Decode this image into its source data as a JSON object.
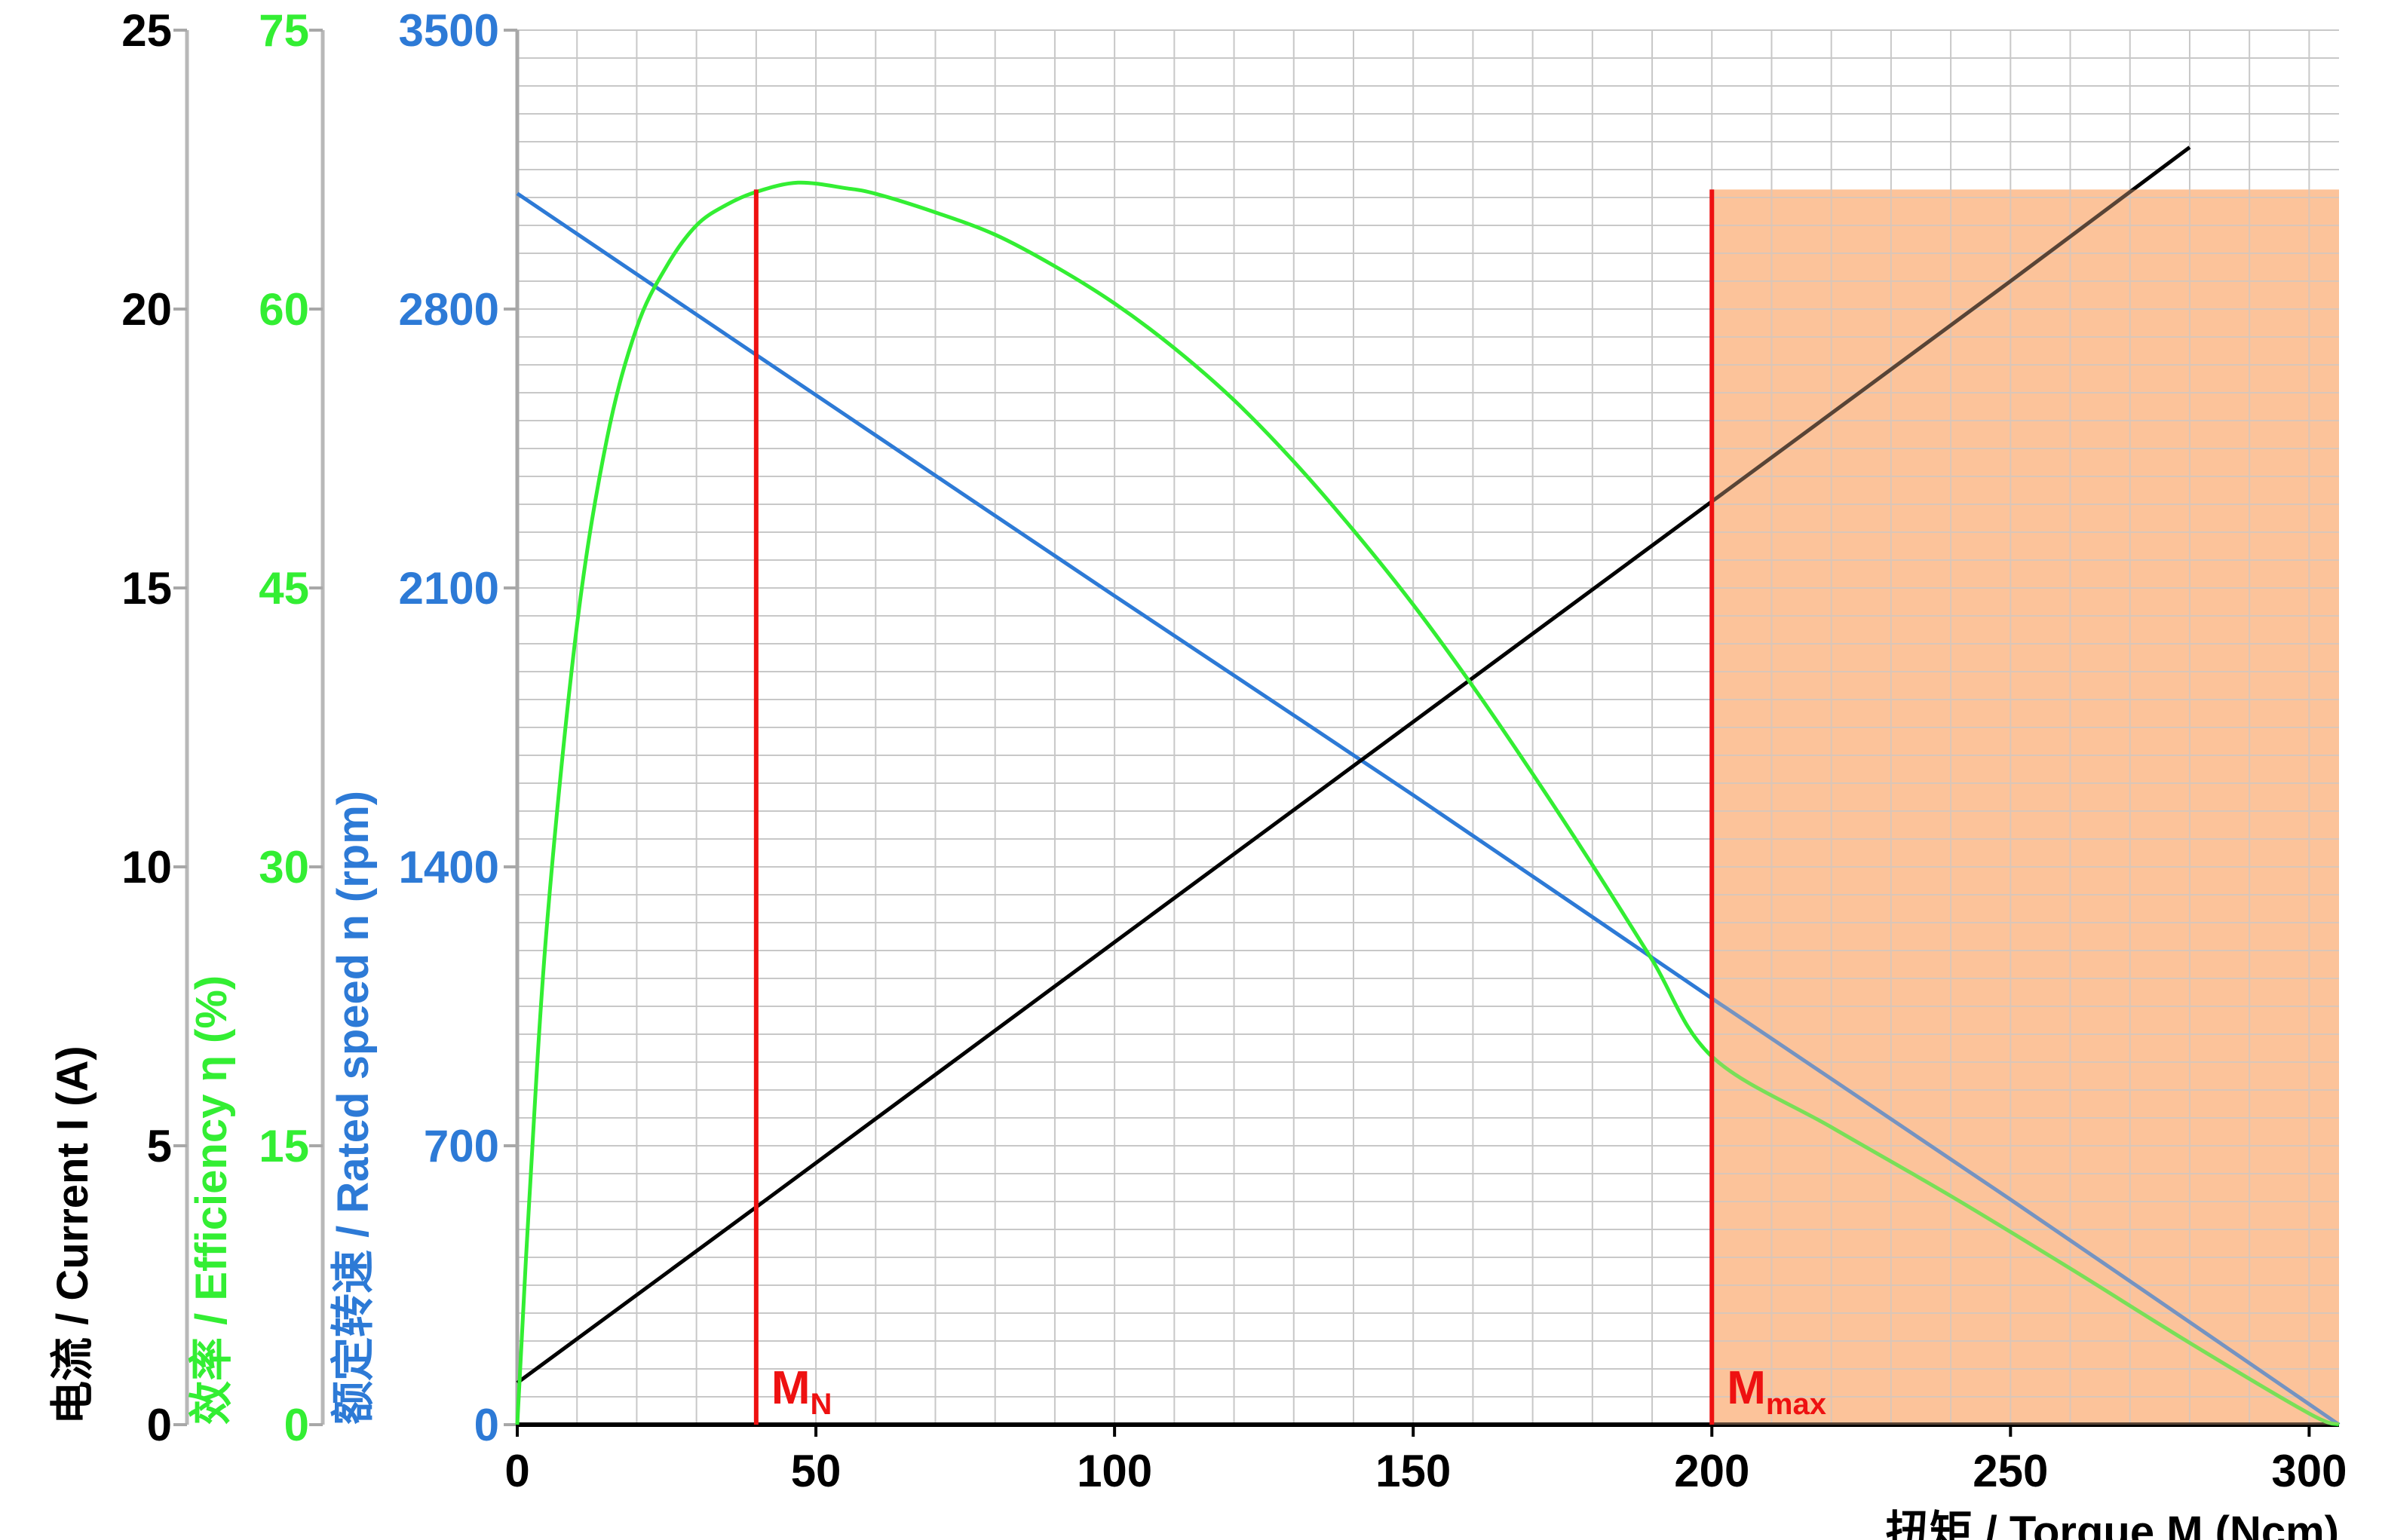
{
  "chart_data": {
    "type": "line",
    "x_axis": {
      "label": "扭矩 / Torque M (Ncm)",
      "range": [
        0,
        305
      ],
      "ticks": [
        0,
        50,
        100,
        150,
        200,
        250,
        300
      ]
    },
    "y_axes": [
      {
        "id": "current",
        "label": "电流 / Current I (A)",
        "range": [
          0,
          25
        ],
        "ticks": [
          0,
          5,
          10,
          15,
          20,
          25
        ],
        "color": "#000000"
      },
      {
        "id": "efficiency",
        "label": "效率 / Efficiency η  (%)",
        "range": [
          0,
          75
        ],
        "ticks": [
          0,
          15,
          30,
          45,
          60,
          75
        ],
        "color": "#33ee33"
      },
      {
        "id": "speed",
        "label": "额定转速 / Rated speed n (rpm)",
        "range": [
          0,
          3500
        ],
        "ticks": [
          0,
          700,
          1400,
          2100,
          2800,
          3500
        ],
        "color": "#2d7ad6"
      }
    ],
    "series": [
      {
        "axis": "speed",
        "color": "#2d7ad6",
        "x": [
          0,
          40,
          100,
          150,
          200,
          250,
          305
        ],
        "y": [
          3090,
          2685,
          2080,
          1580,
          1070,
          565,
          0
        ]
      },
      {
        "axis": "current",
        "color": "#000000",
        "x": [
          0,
          40,
          100,
          150,
          200,
          250,
          280
        ],
        "y": [
          0.75,
          3.9,
          8.65,
          12.6,
          16.55,
          20.5,
          22.9
        ]
      },
      {
        "axis": "efficiency",
        "color": "#33ee33",
        "x": [
          0,
          2,
          5,
          10,
          15,
          20,
          25,
          30,
          35,
          40,
          47,
          55,
          60,
          70,
          80,
          90,
          100,
          110,
          120,
          130,
          140,
          150,
          160,
          170,
          180,
          190,
          200,
          220,
          240,
          260,
          280,
          300,
          305
        ],
        "y": [
          0,
          12,
          27,
          43,
          53,
          59,
          62.3,
          64.5,
          65.6,
          66.3,
          66.8,
          66.5,
          66.2,
          65.2,
          64.0,
          62.3,
          60.3,
          57.9,
          55.1,
          51.8,
          48.1,
          44.1,
          39.7,
          35.0,
          30.1,
          25.0,
          19.8,
          16.0,
          12.3,
          8.4,
          4.4,
          0.6,
          0
        ]
      }
    ],
    "markers": [
      {
        "label": "M",
        "sub": "N",
        "x": 40,
        "top": 3100,
        "color": "#ee1111"
      },
      {
        "label": "M",
        "sub": "max",
        "x": 200,
        "top": 3100,
        "color": "#ee1111"
      }
    ],
    "shaded_region": {
      "x_from": 200,
      "x_to": 305,
      "y_top": 3100,
      "axis": "speed",
      "color": "#fcc49a"
    },
    "grid": true
  }
}
